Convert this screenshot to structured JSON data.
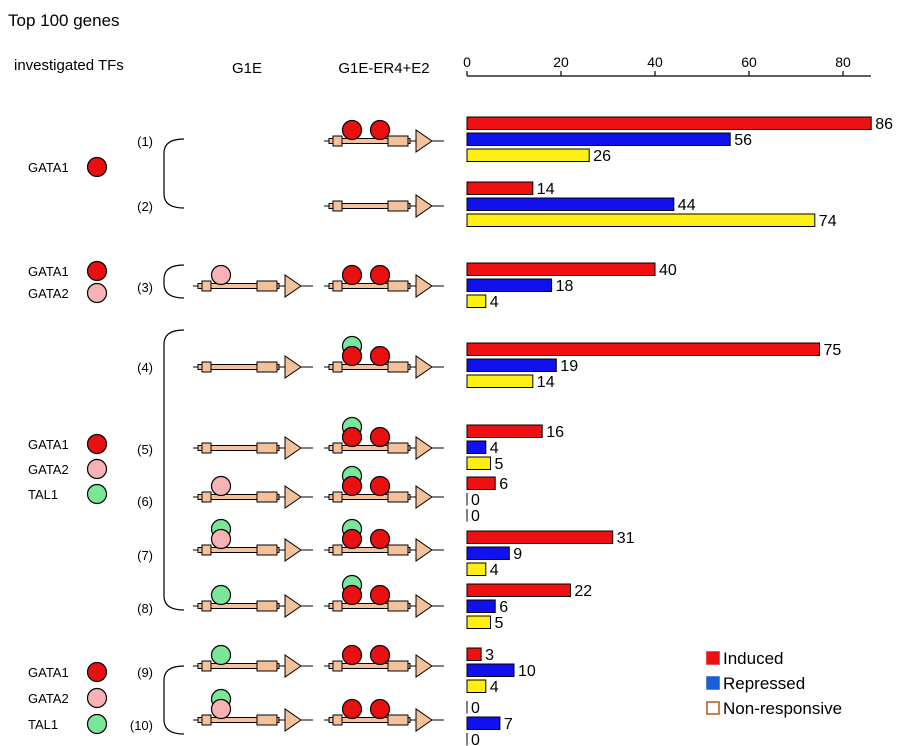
{
  "title": "Top 100 genes",
  "headers": {
    "tfs": "investigated TFs",
    "g1e": "G1E",
    "g1e_er4": "G1E-ER4+E2"
  },
  "legend": [
    {
      "label": "Induced",
      "color": "#ee1111",
      "outline": "#ee1111"
    },
    {
      "label": "Repressed",
      "color": "#1a5fd6",
      "outline": "#1a5fd6"
    },
    {
      "label": "Non-responsive",
      "color": "#ffffff",
      "outline": "#b85a10"
    }
  ],
  "colors": {
    "induced": "#ee1111",
    "repressed": "#1111ee",
    "nonresponsive": "#ffee11",
    "gene": "#f3c19a",
    "gata1": "#e81010",
    "gata2": "#f7b3b3",
    "tal1": "#7ae69a"
  },
  "tf_groups": [
    {
      "labels": [
        "GATA1"
      ],
      "circles": [
        "gata1"
      ]
    },
    {
      "labels": [
        "GATA1",
        "GATA2"
      ],
      "circles": [
        "gata1",
        "gata2"
      ]
    },
    {
      "labels": [
        "GATA1",
        "GATA2",
        "TAL1"
      ],
      "circles": [
        "gata1",
        "gata2",
        "tal1"
      ]
    },
    {
      "labels": [
        "GATA1",
        "GATA2",
        "TAL1"
      ],
      "circles": [
        "gata1",
        "gata2",
        "tal1"
      ]
    }
  ],
  "rows": [
    {
      "id": "(1)",
      "g1e": [],
      "er4": [
        "gata1",
        "gata1"
      ]
    },
    {
      "id": "(2)",
      "g1e": [],
      "er4": []
    },
    {
      "id": "(3)",
      "g1e": [
        "gata2"
      ],
      "er4": [
        "gata1",
        "gata1"
      ]
    },
    {
      "id": "(4)",
      "g1e": [],
      "er4": [
        "gata1+tal1",
        "gata1"
      ]
    },
    {
      "id": "(5)",
      "g1e": [],
      "er4": [
        "gata1+tal1",
        "gata1"
      ]
    },
    {
      "id": "(6)",
      "g1e": [
        "gata2"
      ],
      "er4": [
        "gata1+tal1",
        "gata1"
      ]
    },
    {
      "id": "(7)",
      "g1e": [
        "gata2+tal1"
      ],
      "er4": [
        "gata1+tal1",
        "gata1"
      ]
    },
    {
      "id": "(8)",
      "g1e": [
        "tal1"
      ],
      "er4": [
        "gata1+tal1",
        "gata1"
      ]
    },
    {
      "id": "(9)",
      "g1e": [
        "tal1"
      ],
      "er4": [
        "gata1",
        "gata1"
      ]
    },
    {
      "id": "(10)",
      "g1e": [
        "gata2+tal1"
      ],
      "er4": [
        "gata1",
        "gata1"
      ]
    }
  ],
  "chart_data": {
    "type": "bar",
    "orientation": "horizontal",
    "xlim": [
      0,
      86
    ],
    "xticks": [
      0,
      20,
      40,
      60,
      80
    ],
    "categories": [
      "(1)",
      "(2)",
      "(3)",
      "(4)",
      "(5)",
      "(6)",
      "(7)",
      "(8)",
      "(9)",
      "(10)"
    ],
    "series": [
      {
        "name": "Induced",
        "values": [
          86,
          14,
          40,
          75,
          16,
          6,
          31,
          22,
          3,
          0
        ]
      },
      {
        "name": "Repressed",
        "values": [
          56,
          44,
          18,
          19,
          4,
          0,
          9,
          6,
          10,
          7
        ]
      },
      {
        "name": "Non-responsive",
        "values": [
          26,
          74,
          4,
          14,
          5,
          0,
          4,
          5,
          4,
          0
        ]
      }
    ]
  }
}
